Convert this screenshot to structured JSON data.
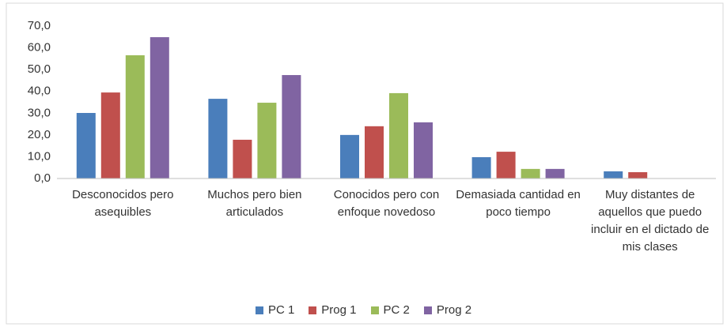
{
  "chart_data": {
    "type": "bar",
    "categories": [
      "Desconocidos pero asequibles",
      "Muchos pero bien articulados",
      "Conocidos pero con enfoque novedoso",
      "Demasiada cantidad en poco tiempo",
      "Muy distantes de aquellos que puedo incluir en el dictado de mis clases"
    ],
    "series": [
      {
        "name": "PC 1",
        "color": "#4a7ebb",
        "values": [
          30.1,
          36.6,
          20.0,
          9.8,
          3.3
        ]
      },
      {
        "name": "Prog 1",
        "color": "#c0504d",
        "values": [
          39.5,
          17.8,
          24.0,
          12.3,
          2.9
        ]
      },
      {
        "name": "PC 2",
        "color": "#9bbb59",
        "values": [
          56.6,
          34.8,
          39.2,
          4.4,
          0
        ]
      },
      {
        "name": "Prog 2",
        "color": "#8064a2",
        "values": [
          64.9,
          47.5,
          25.8,
          4.4,
          0
        ]
      }
    ],
    "ylim": [
      0,
      70
    ],
    "yticks": [
      {
        "value": 0,
        "label": "0,0"
      },
      {
        "value": 10,
        "label": "10,0"
      },
      {
        "value": 20,
        "label": "20,0"
      },
      {
        "value": 30,
        "label": "30,0"
      },
      {
        "value": 40,
        "label": "40,0"
      },
      {
        "value": 50,
        "label": "50,0"
      },
      {
        "value": 60,
        "label": "60,0"
      },
      {
        "value": 70,
        "label": "70,0"
      }
    ],
    "grid": false,
    "legend": "bottom"
  }
}
